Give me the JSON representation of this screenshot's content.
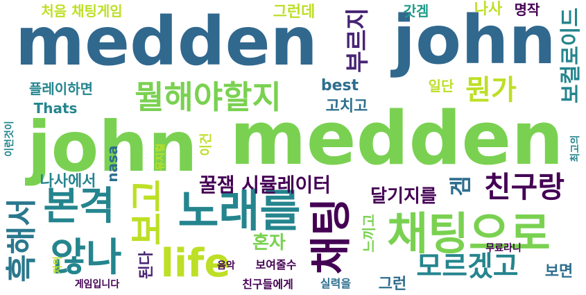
{
  "word_cloud": {
    "words": [
      {
        "text": "medden",
        "color": "#31688e"
      },
      {
        "text": "john",
        "color": "#31688e"
      },
      {
        "text": "john",
        "color": "#7ad151"
      },
      {
        "text": "medden",
        "color": "#7ad151"
      },
      {
        "text": "채팅으로",
        "color": "#7ad151"
      },
      {
        "text": "뭘해야할지",
        "color": "#7ad151"
      },
      {
        "text": "노래를",
        "color": "#25858e"
      },
      {
        "text": "본격",
        "color": "#25858e"
      },
      {
        "text": "않나",
        "color": "#25858e"
      },
      {
        "text": "life",
        "color": "#bddf26"
      },
      {
        "text": "채팅",
        "color": "#440154"
      },
      {
        "text": "모르겠고",
        "color": "#25858e"
      },
      {
        "text": "보고",
        "color": "#bddf26"
      },
      {
        "text": "흑해서",
        "color": "#2a788e"
      },
      {
        "text": "뭔가",
        "color": "#bddf26"
      },
      {
        "text": "부르지",
        "color": "#482475"
      },
      {
        "text": "보컬로이드",
        "color": "#25858e"
      },
      {
        "text": "친구랑",
        "color": "#440154"
      },
      {
        "text": "겜",
        "color": "#2e6e8e"
      },
      {
        "text": "처음 채팅게임",
        "color": "#bddf26"
      },
      {
        "text": "그런데",
        "color": "#bddf26"
      },
      {
        "text": "갓겜",
        "color": "#1e9b8a"
      },
      {
        "text": "나사",
        "color": "#bddf26"
      },
      {
        "text": "명작",
        "color": "#440154"
      },
      {
        "text": "플레이하면",
        "color": "#25858e"
      },
      {
        "text": "best",
        "color": "#2e6e8e"
      },
      {
        "text": "일단",
        "color": "#bddf26"
      },
      {
        "text": "Thats",
        "color": "#25858e"
      },
      {
        "text": "고치고",
        "color": "#2e6e8e"
      },
      {
        "text": "꿀잼 시뮬레이터",
        "color": "#440154"
      },
      {
        "text": "나사에서",
        "color": "#25858e"
      },
      {
        "text": "nasa",
        "color": "#2e6e8e"
      },
      {
        "text": "이건",
        "color": "#bddf26"
      },
      {
        "text": "달기지를",
        "color": "#440154"
      },
      {
        "text": "혼자",
        "color": "#7ad151"
      },
      {
        "text": "그런",
        "color": "#2e6e8e"
      },
      {
        "text": "보면",
        "color": "#2e6e8e"
      },
      {
        "text": "된다",
        "color": "#482475"
      },
      {
        "text": "느끼고",
        "color": "#7ad151"
      },
      {
        "text": "무료라니",
        "color": "#440154"
      },
      {
        "text": "실력을",
        "color": "#2e6e8e"
      },
      {
        "text": "보여줄수",
        "color": "#440154"
      },
      {
        "text": "친구들에게",
        "color": "#440154"
      },
      {
        "text": "게임입니다",
        "color": "#440154"
      },
      {
        "text": "음악",
        "color": "#440154"
      },
      {
        "text": "저의",
        "color": "#bddf26"
      },
      {
        "text": "이런것이",
        "color": "#25858e"
      },
      {
        "text": "뮤지컬",
        "color": "#bddf26"
      },
      {
        "text": "최고의",
        "color": "#25858e"
      }
    ]
  }
}
